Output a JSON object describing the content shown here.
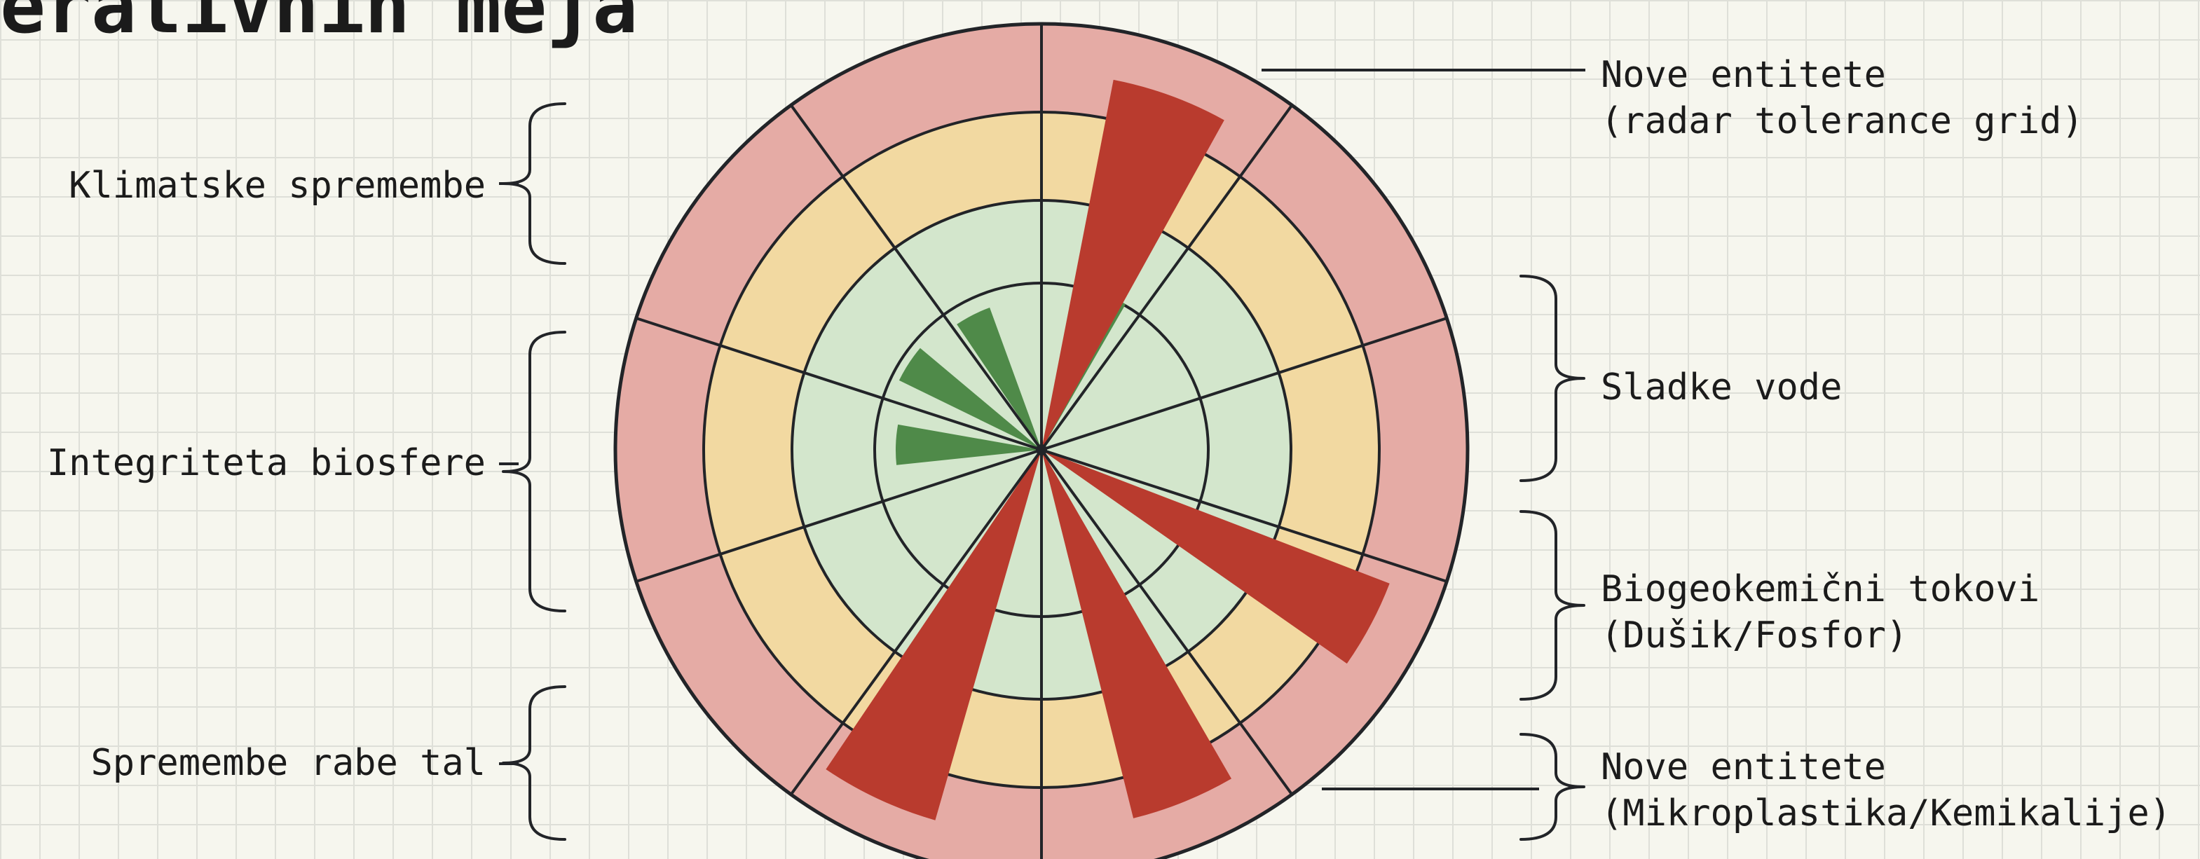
{
  "title": "erativnih meja",
  "colors": {
    "safe": "#d3e6cc",
    "zone": "#f2d9a1",
    "high": "#e5aba5",
    "safe_wedge": "#4f8a49",
    "over_wedge": "#b93b2e",
    "line": "#222428"
  },
  "labels_left": [
    {
      "id": "klimatske",
      "text": "Klimatske spremembe"
    },
    {
      "id": "integriteta",
      "text": "Integriteta biosfere"
    },
    {
      "id": "raba-tal",
      "text": "Spremembe rabe tal"
    }
  ],
  "labels_right": [
    {
      "id": "nove-entitete-radar",
      "line1": "Nove entitete",
      "line2": "(radar tolerance grid)"
    },
    {
      "id": "sladke-vode",
      "line1": "Sladke vode",
      "line2": ""
    },
    {
      "id": "biogeokemicni",
      "line1": "Biogeokemični tokovi",
      "line2": "(Dušik/Fosfor)"
    },
    {
      "id": "nove-entitete-mikro",
      "line1": "Nove entitete",
      "line2": "(Mikroplastika/Kemikalije)"
    }
  ]
}
